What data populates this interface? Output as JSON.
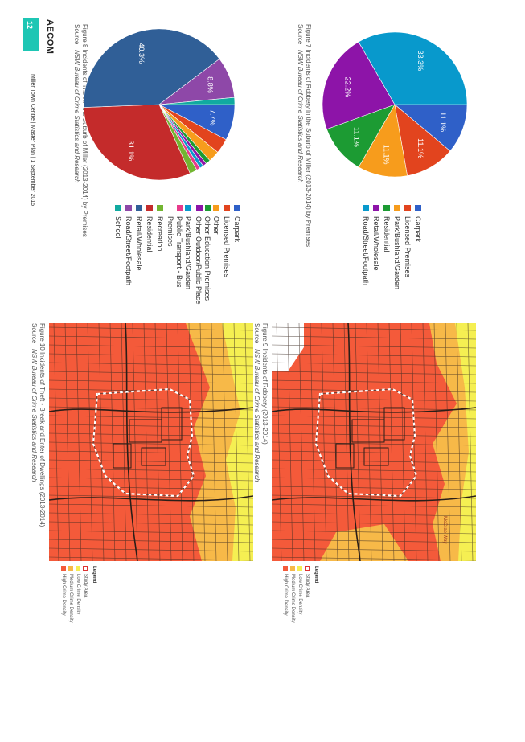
{
  "document": {
    "brand": "AECOM",
    "page_number": "12",
    "footer": "Miller Town Centre  |  Master Plan  |  1 September 2015"
  },
  "figures": {
    "fig7": {
      "caption": "Figure 7    Incidents of Robbery in the Suburb of Miller (2013-2014) by Premises",
      "source_label": "Source",
      "source_text": "NSW Bureau of Crime Statistics and Research"
    },
    "fig8": {
      "caption": "Figure 8    Incidents of Theft in the Suburb of Miller (2013-2014) by Premises",
      "source_label": "Source",
      "source_text": "NSW Bureau of Crime Statistics and Research"
    },
    "fig9": {
      "caption": "Figure 9    Incidents of Robbery (2013-2014)",
      "source_label": "Source",
      "source_text": "NSW Bureau of Crime Statistics and Research"
    },
    "fig10": {
      "caption": "Figure 10    Incidents of Theft - Break and Enter of Dwellings (2013-2014)",
      "source_label": "Source",
      "source_text": "NSW Bureau of Crime Statistics and Research"
    }
  },
  "map_legend": {
    "title": "Legend",
    "items": [
      {
        "label": "Study Area",
        "color": "#ffffff"
      },
      {
        "label": "Low Crime Density",
        "color": "#f5ef52"
      },
      {
        "label": "Medium Crime Density",
        "color": "#f7b948"
      },
      {
        "label": "High Crime Density",
        "color": "#f45a3a"
      }
    ]
  },
  "map_street_label": "McCrae Way",
  "chart_data": [
    {
      "type": "pie",
      "title": "",
      "categories": [
        "Carpark",
        "Licensed Premises",
        "Park/Bushland/Garden",
        "Residential",
        "Retail/Wholesale",
        "Road/Street/Footpath"
      ],
      "colors": [
        "#2f60c8",
        "#e2441e",
        "#f79c1c",
        "#1c9b33",
        "#8d14a8",
        "#0899cc"
      ],
      "values": [
        11.1,
        11.1,
        11.1,
        11.1,
        22.2,
        33.3
      ],
      "labels": [
        "11.1%",
        "11.1%",
        "11.1%",
        "11.1%",
        "22.2%",
        "33.3%"
      ],
      "legend": "right"
    },
    {
      "type": "pie",
      "title": "",
      "categories": [
        "Carpark",
        "Licensed Premises",
        "Other",
        "Other Education Premises",
        "Other Outdoor/Public Place",
        "Park/Bushland/Garden",
        "Public Transport - Bus Premises",
        "Recreation",
        "Residential",
        "Retail/Wholesale",
        "Road/Street/Footpath",
        "School"
      ],
      "colors": [
        "#2f60c8",
        "#e2441e",
        "#f79c1c",
        "#1c9b33",
        "#8d14a8",
        "#0899cc",
        "#e83a8b",
        "#72b531",
        "#c42b2b",
        "#305f97",
        "#8e48a8",
        "#11aaa0"
      ],
      "values": [
        7.7,
        3.2,
        2.4,
        1.0,
        0.8,
        0.8,
        0.8,
        1.6,
        31.1,
        40.3,
        8.8,
        1.5
      ],
      "labels": [
        "7.7%",
        "",
        "",
        "",
        "",
        "",
        "",
        "",
        "31.1%",
        "40.3%",
        "8.8%",
        ""
      ],
      "legend": "right"
    }
  ]
}
